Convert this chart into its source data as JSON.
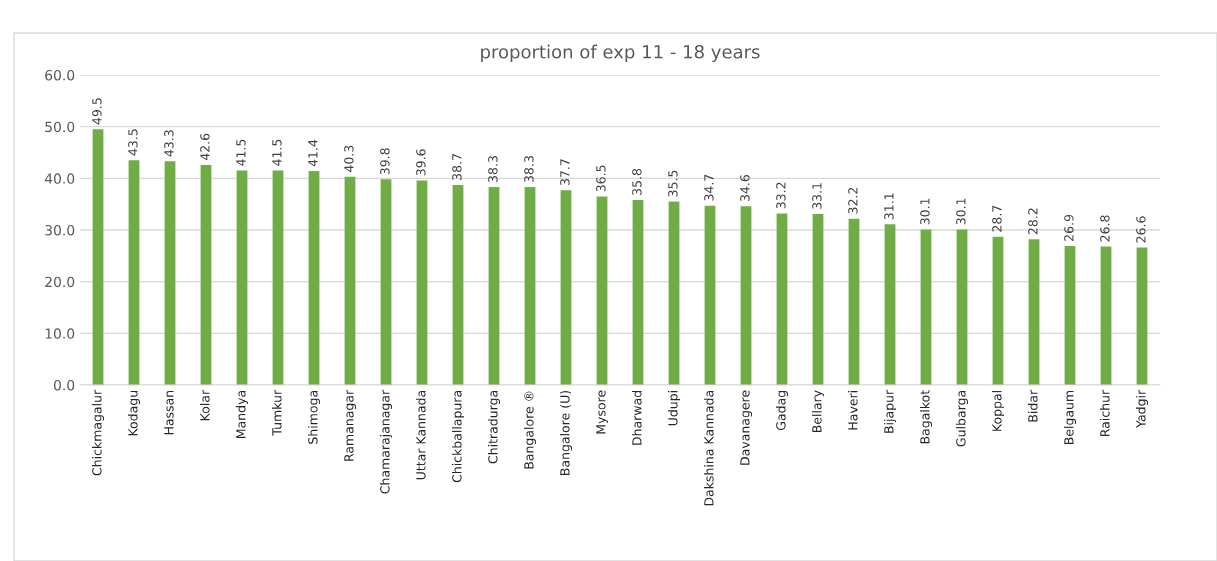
{
  "chart_data": {
    "type": "bar",
    "title": "proportion of exp 11 - 18 years",
    "categories": [
      "Chickmagalur",
      "Kodagu",
      "Hassan",
      "Kolar",
      "Mandya",
      "Tumkur",
      "Shimoga",
      "Ramanagar",
      "Chamarajanagar",
      "Uttar Kannada",
      "Chickballapura",
      "Chitradurga",
      "Bangalore ®",
      "Bangalore (U)",
      "Mysore",
      "Dharwad",
      "Udupi",
      "Dakshina Kannada",
      "Davanagere",
      "Gadag",
      "Bellary",
      "Haveri",
      "Bijapur",
      "Bagalkot",
      "Gulbarga",
      "Koppal",
      "Bidar",
      "Belgaum",
      "Raichur",
      "Yadgir"
    ],
    "values": [
      49.5,
      43.5,
      43.3,
      42.6,
      41.5,
      41.5,
      41.4,
      40.3,
      39.8,
      39.6,
      38.7,
      38.3,
      38.3,
      37.7,
      36.5,
      35.8,
      35.5,
      34.7,
      34.6,
      33.2,
      33.1,
      32.2,
      31.1,
      30.1,
      30.1,
      28.7,
      28.2,
      26.9,
      26.8,
      26.6
    ],
    "value_labels": [
      "49.5",
      "43.5",
      "43.3",
      "42.6",
      "41.5",
      "41.5",
      "41.4",
      "40.3",
      "39.8",
      "39.6",
      "38.7",
      "38.3",
      "38.3",
      "37.7",
      "36.5",
      "35.8",
      "35.5",
      "34.7",
      "34.6",
      "33.2",
      "33.1",
      "32.2",
      "31.1",
      "30.1",
      "30.1",
      "28.7",
      "28.2",
      "26.9",
      "26.8",
      "26.6"
    ],
    "color": "#70ad47",
    "ylim": [
      0,
      60
    ],
    "yticks": [
      {
        "value": 0,
        "label": "0.0"
      },
      {
        "value": 10,
        "label": "10.0"
      },
      {
        "value": 20,
        "label": "20.0"
      },
      {
        "value": 30,
        "label": "30.0"
      },
      {
        "value": 40,
        "label": "40.0"
      },
      {
        "value": 50,
        "label": "50.0"
      },
      {
        "value": 60,
        "label": "60.0"
      }
    ],
    "grid": "y",
    "legend": false
  }
}
